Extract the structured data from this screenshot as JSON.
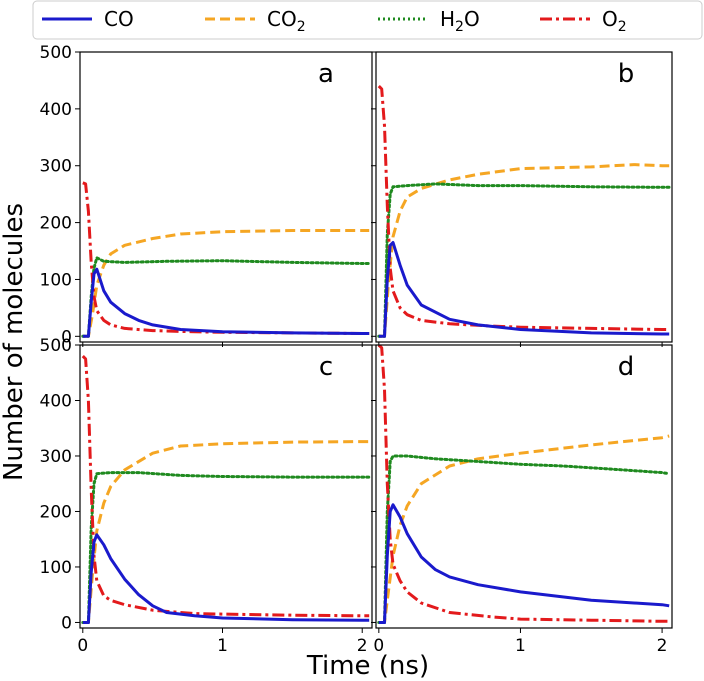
{
  "chart_data": {
    "type": "line",
    "xlabel": "Time (ns)",
    "ylabel": "Number of molecules",
    "xlim": [
      -0.02,
      2.07
    ],
    "ylim": [
      -10,
      500
    ],
    "xticks": [
      0,
      1,
      2
    ],
    "yticks": [
      0,
      100,
      200,
      300,
      400,
      500
    ],
    "legend": {
      "position": "top",
      "entries": [
        {
          "key": "CO",
          "label": "CO",
          "sub": "",
          "color": "#1a1acc",
          "style": "solid"
        },
        {
          "key": "CO2",
          "label": "CO",
          "sub": "2",
          "color": "#f5a623",
          "style": "dashed"
        },
        {
          "key": "H2O",
          "label": "H",
          "sub": "2",
          "tail": "O",
          "color": "#1f8a1f",
          "style": "dotted"
        },
        {
          "key": "O2",
          "label": "O",
          "sub": "2",
          "color": "#e31a1c",
          "style": "dashdot"
        }
      ]
    },
    "panels": [
      {
        "label": "a",
        "series": {
          "CO": {
            "x": [
              0,
              0.04,
              0.06,
              0.08,
              0.1,
              0.15,
              0.2,
              0.3,
              0.4,
              0.5,
              0.7,
              1.0,
              1.5,
              2.0,
              2.05
            ],
            "y": [
              0,
              0,
              60,
              110,
              118,
              80,
              60,
              40,
              28,
              20,
              12,
              8,
              6,
              5,
              5
            ]
          },
          "CO2": {
            "x": [
              0,
              0.04,
              0.07,
              0.1,
              0.15,
              0.2,
              0.3,
              0.5,
              0.7,
              1.0,
              1.5,
              2.0,
              2.05
            ],
            "y": [
              0,
              0,
              40,
              90,
              125,
              145,
              160,
              172,
              180,
              184,
              186,
              186,
              186
            ]
          },
          "H2O": {
            "x": [
              0,
              0.04,
              0.06,
              0.08,
              0.1,
              0.15,
              0.3,
              0.6,
              1.0,
              1.5,
              2.0,
              2.05
            ],
            "y": [
              0,
              0,
              70,
              120,
              138,
              132,
              130,
              132,
              133,
              130,
              128,
              128
            ]
          },
          "O2": {
            "x": [
              0,
              0.02,
              0.04,
              0.06,
              0.08,
              0.1,
              0.15,
              0.2,
              0.3,
              0.5,
              0.8,
              1.0,
              1.5,
              2.0,
              2.05
            ],
            "y": [
              270,
              268,
              220,
              130,
              70,
              45,
              28,
              20,
              14,
              10,
              8,
              7,
              6,
              5,
              5
            ]
          }
        }
      },
      {
        "label": "b",
        "series": {
          "CO": {
            "x": [
              0,
              0.04,
              0.06,
              0.08,
              0.1,
              0.15,
              0.2,
              0.3,
              0.5,
              0.7,
              1.0,
              1.5,
              2.0,
              2.05
            ],
            "y": [
              0,
              0,
              100,
              160,
              165,
              125,
              90,
              55,
              30,
              20,
              12,
              6,
              4,
              4
            ]
          },
          "CO2": {
            "x": [
              0,
              0.04,
              0.07,
              0.1,
              0.15,
              0.2,
              0.3,
              0.5,
              0.7,
              1.0,
              1.5,
              1.8,
              2.0,
              2.05
            ],
            "y": [
              0,
              0,
              100,
              175,
              220,
              245,
              260,
              275,
              285,
              295,
              298,
              302,
              300,
              300
            ]
          },
          "H2O": {
            "x": [
              0,
              0.04,
              0.06,
              0.08,
              0.1,
              0.2,
              0.4,
              0.7,
              1.0,
              1.5,
              2.0,
              2.05
            ],
            "y": [
              0,
              0,
              180,
              250,
              263,
              265,
              268,
              265,
              265,
              263,
              262,
              262
            ]
          },
          "O2": {
            "x": [
              0,
              0.02,
              0.04,
              0.06,
              0.08,
              0.1,
              0.15,
              0.2,
              0.3,
              0.5,
              0.8,
              1.0,
              1.5,
              2.0,
              2.05
            ],
            "y": [
              440,
              435,
              370,
              230,
              120,
              80,
              50,
              38,
              28,
              22,
              18,
              16,
              14,
              12,
              12
            ]
          }
        }
      },
      {
        "label": "c",
        "series": {
          "CO": {
            "x": [
              0,
              0.04,
              0.06,
              0.08,
              0.1,
              0.15,
              0.2,
              0.3,
              0.4,
              0.5,
              0.6,
              0.8,
              1.0,
              1.5,
              2.0,
              2.05
            ],
            "y": [
              0,
              0,
              90,
              145,
              158,
              140,
              115,
              78,
              50,
              30,
              18,
              12,
              8,
              5,
              4,
              4
            ]
          },
          "CO2": {
            "x": [
              0,
              0.04,
              0.07,
              0.1,
              0.15,
              0.2,
              0.3,
              0.5,
              0.7,
              1.0,
              1.5,
              2.0,
              2.05
            ],
            "y": [
              0,
              0,
              90,
              165,
              215,
              245,
              275,
              305,
              318,
              322,
              325,
              326,
              326
            ]
          },
          "H2O": {
            "x": [
              0,
              0.04,
              0.06,
              0.08,
              0.1,
              0.2,
              0.4,
              0.7,
              1.0,
              1.5,
              2.0,
              2.05
            ],
            "y": [
              0,
              0,
              170,
              250,
              268,
              270,
              270,
              265,
              263,
              262,
              262,
              262
            ]
          },
          "O2": {
            "x": [
              0,
              0.02,
              0.04,
              0.06,
              0.08,
              0.1,
              0.15,
              0.2,
              0.3,
              0.5,
              0.8,
              1.0,
              1.5,
              2.0,
              2.05
            ],
            "y": [
              480,
              475,
              400,
              240,
              120,
              75,
              48,
              40,
              32,
              22,
              16,
              15,
              13,
              12,
              12
            ]
          }
        }
      },
      {
        "label": "d",
        "series": {
          "CO": {
            "x": [
              0,
              0.04,
              0.06,
              0.08,
              0.1,
              0.15,
              0.2,
              0.3,
              0.4,
              0.5,
              0.7,
              1.0,
              1.5,
              2.0,
              2.05
            ],
            "y": [
              0,
              0,
              120,
              200,
              212,
              190,
              160,
              118,
              95,
              82,
              68,
              55,
              40,
              32,
              30
            ]
          },
          "CO2": {
            "x": [
              0,
              0.04,
              0.07,
              0.1,
              0.15,
              0.2,
              0.3,
              0.5,
              0.7,
              1.0,
              1.5,
              2.0,
              2.05
            ],
            "y": [
              0,
              0,
              60,
              120,
              175,
              210,
              250,
              282,
              295,
              305,
              320,
              333,
              336
            ]
          },
          "H2O": {
            "x": [
              0,
              0.04,
              0.06,
              0.08,
              0.1,
              0.2,
              0.4,
              0.7,
              1.0,
              1.3,
              1.6,
              2.0,
              2.05
            ],
            "y": [
              0,
              0,
              200,
              290,
              300,
              300,
              295,
              290,
              285,
              282,
              277,
              270,
              268
            ]
          },
          "O2": {
            "x": [
              0,
              0.02,
              0.04,
              0.06,
              0.08,
              0.1,
              0.15,
              0.2,
              0.3,
              0.5,
              0.8,
              1.0,
              1.5,
              2.0,
              2.05
            ],
            "y": [
              500,
              495,
              420,
              250,
              150,
              105,
              75,
              55,
              35,
              18,
              10,
              6,
              4,
              2,
              2
            ]
          }
        }
      }
    ]
  }
}
